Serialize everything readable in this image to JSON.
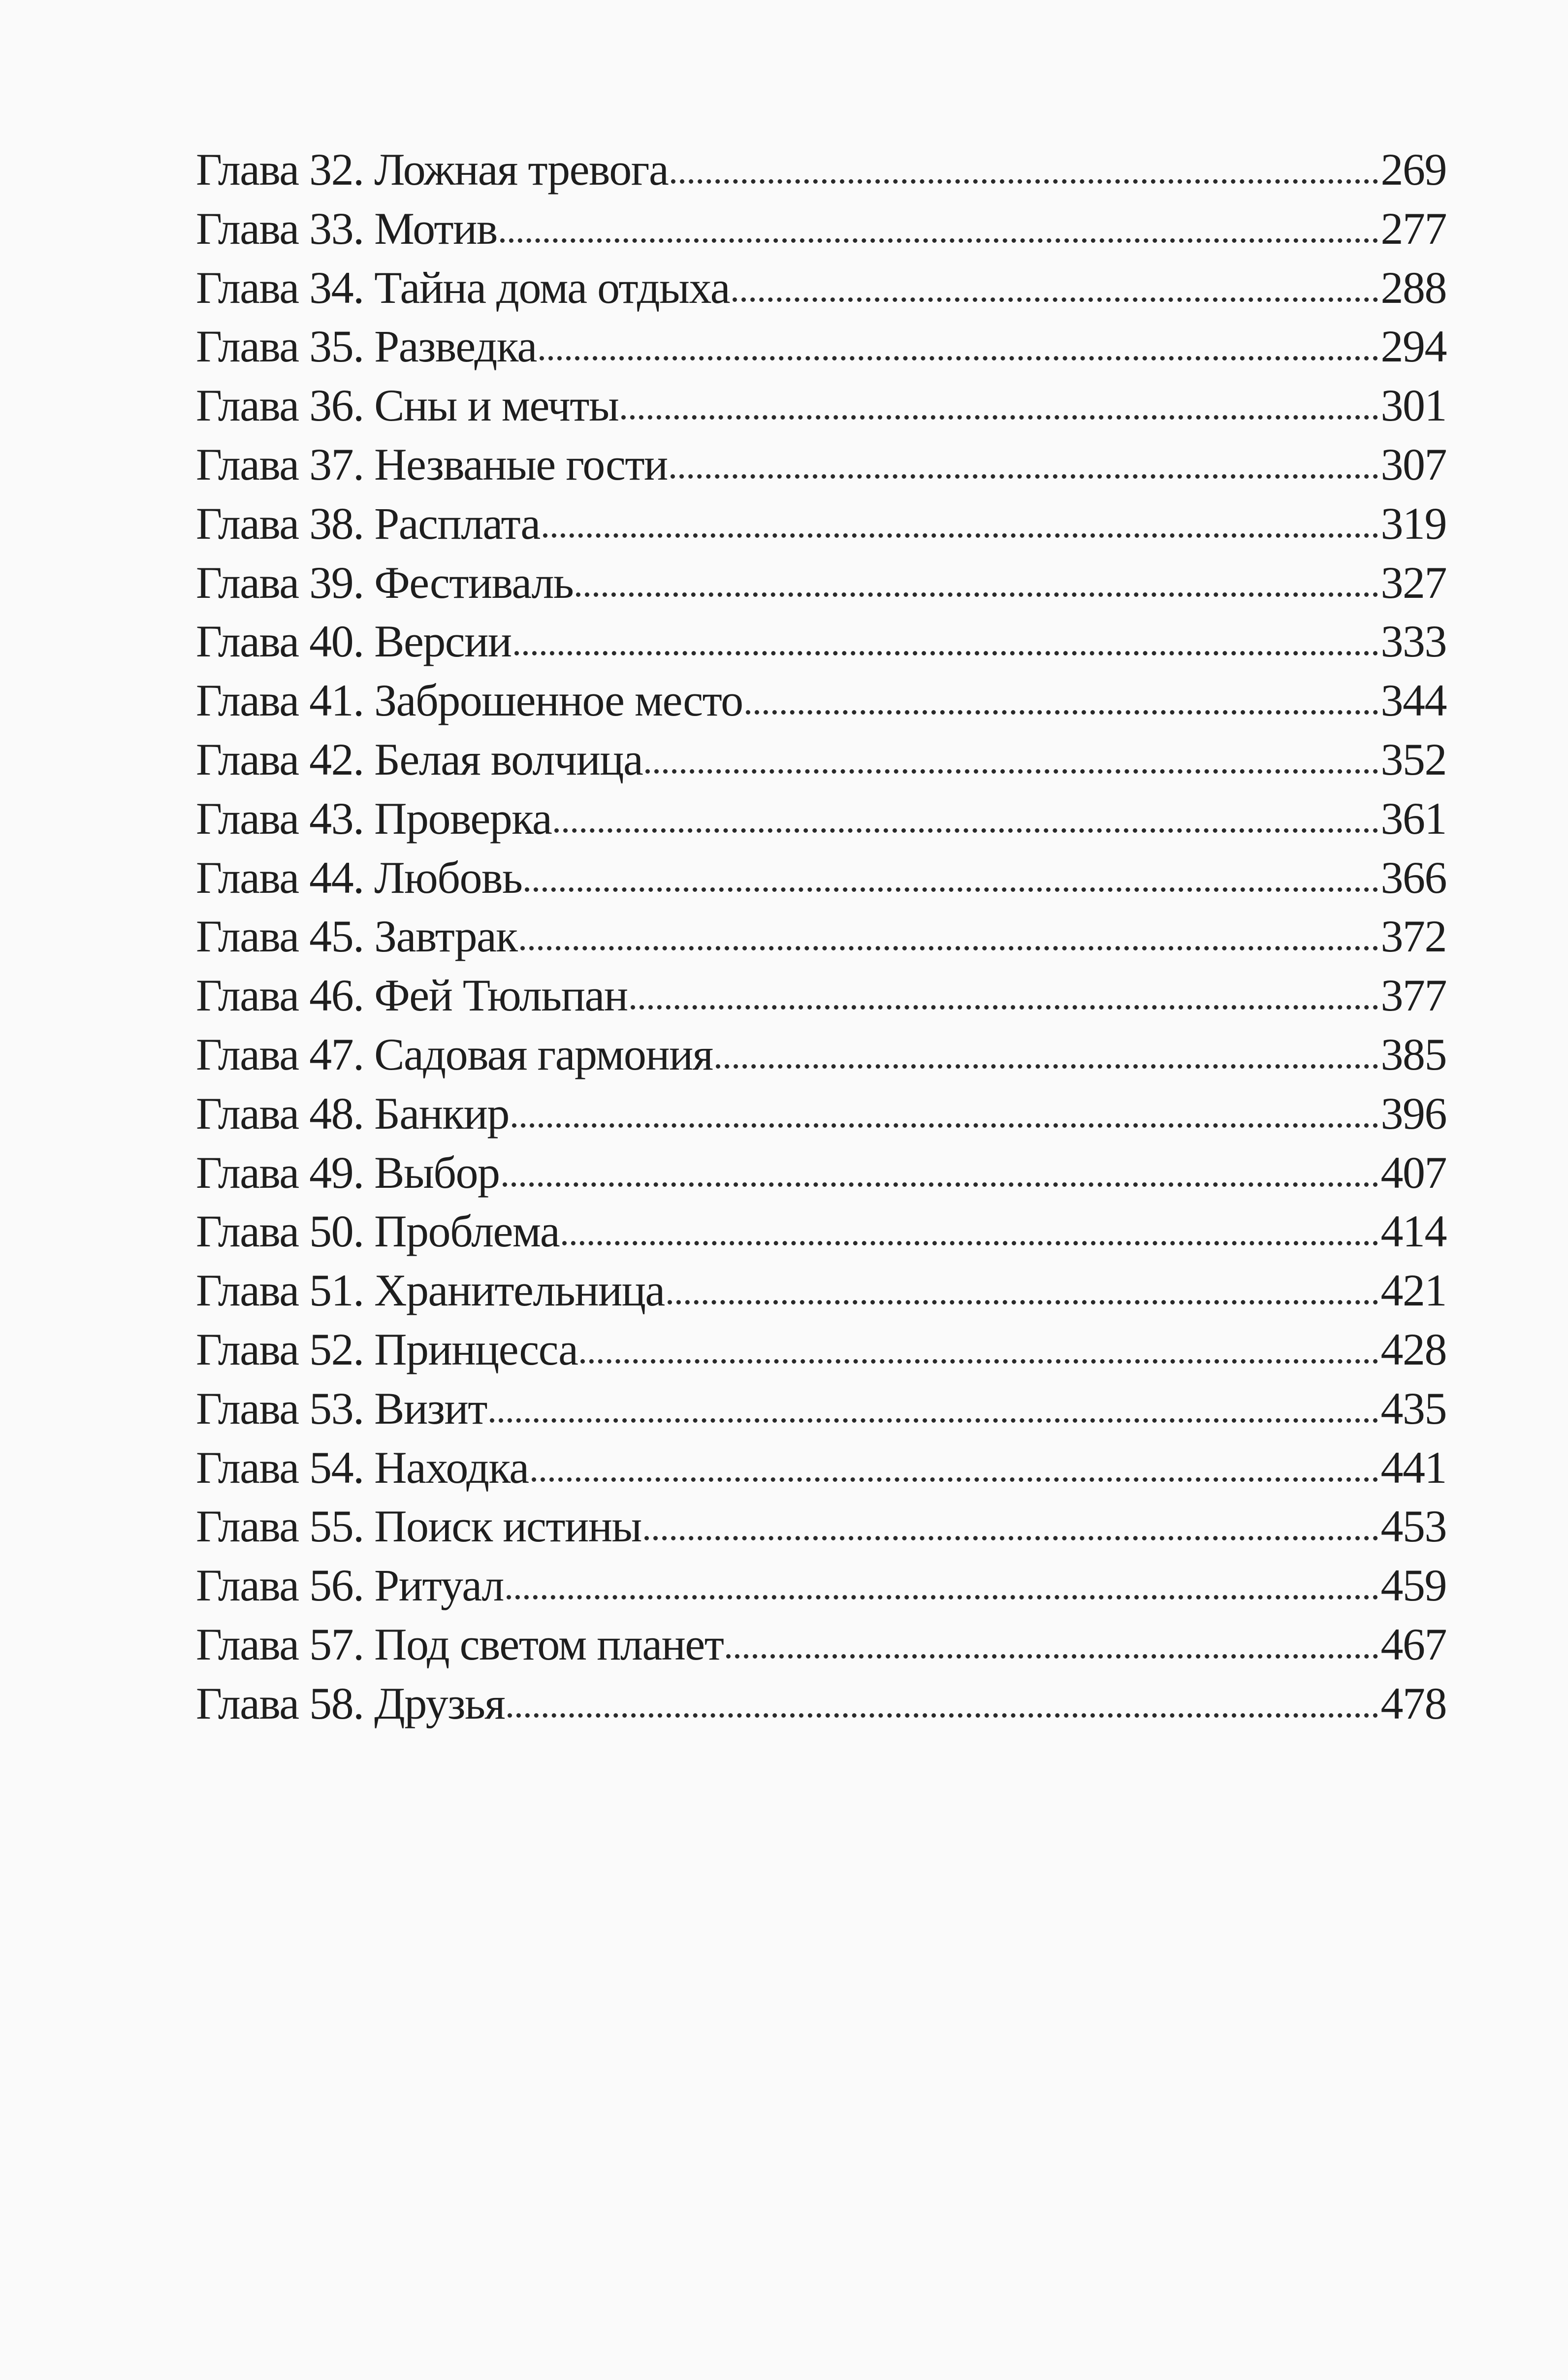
{
  "toc": {
    "entries": [
      {
        "title": "Глава 32. Ложная тревога",
        "page": "269"
      },
      {
        "title": "Глава 33. Мотив",
        "page": "277"
      },
      {
        "title": "Глава 34. Тайна дома отдыха",
        "page": "288"
      },
      {
        "title": "Глава 35. Разведка",
        "page": "294"
      },
      {
        "title": "Глава 36. Сны и мечты",
        "page": "301"
      },
      {
        "title": "Глава 37. Незваные гости",
        "page": "307"
      },
      {
        "title": "Глава 38. Расплата",
        "page": "319"
      },
      {
        "title": "Глава 39. Фестиваль",
        "page": "327"
      },
      {
        "title": "Глава 40. Версии",
        "page": "333"
      },
      {
        "title": "Глава 41. Заброшенное место",
        "page": "344"
      },
      {
        "title": "Глава 42. Белая волчица",
        "page": "352"
      },
      {
        "title": "Глава 43. Проверка",
        "page": "361"
      },
      {
        "title": "Глава 44. Любовь",
        "page": "366"
      },
      {
        "title": "Глава 45. Завтрак",
        "page": "372"
      },
      {
        "title": "Глава 46. Фей Тюльпан",
        "page": "377"
      },
      {
        "title": "Глава 47. Садовая гармония",
        "page": "385"
      },
      {
        "title": "Глава 48. Банкир",
        "page": "396"
      },
      {
        "title": "Глава 49. Выбор",
        "page": "407"
      },
      {
        "title": "Глава 50. Проблема",
        "page": "414"
      },
      {
        "title": "Глава 51. Хранительница",
        "page": "421"
      },
      {
        "title": "Глава 52. Принцесса",
        "page": "428"
      },
      {
        "title": "Глава 53. Визит",
        "page": "435"
      },
      {
        "title": "Глава 54. Находка",
        "page": "441"
      },
      {
        "title": "Глава 55. Поиск истины",
        "page": "453"
      },
      {
        "title": "Глава 56. Ритуал",
        "page": "459"
      },
      {
        "title": "Глава 57. Под светом планет",
        "page": "467"
      },
      {
        "title": "Глава 58. Друзья",
        "page": "478"
      }
    ]
  }
}
